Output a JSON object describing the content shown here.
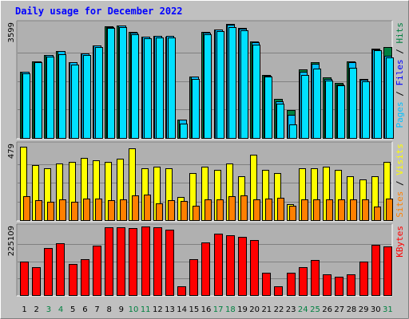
{
  "chart_data": {
    "type": "bar",
    "title": "Daily usage for December 2022",
    "x": [
      "1",
      "2",
      "3",
      "4",
      "5",
      "6",
      "7",
      "8",
      "9",
      "10",
      "11",
      "12",
      "13",
      "14",
      "15",
      "16",
      "17",
      "18",
      "19",
      "20",
      "21",
      "22",
      "23",
      "24",
      "25",
      "26",
      "27",
      "28",
      "29",
      "30",
      "31"
    ],
    "weekend_days": [
      "3",
      "4",
      "10",
      "11",
      "17",
      "18",
      "24",
      "25",
      "31"
    ],
    "colors": {
      "background": "#c0c0c0",
      "plot": "#b0b0b0",
      "title": "#0000ff",
      "weekday_tick": "#000000",
      "weekend_tick": "#008040",
      "hits": "#008040",
      "files": "#00c0ff",
      "pages": "#00e0ff",
      "visits": "#ff8000",
      "sites": "#ffff00",
      "kbytes": "#ff0000"
    },
    "panels": [
      {
        "name": "hits-files-pages",
        "ymax": 3599,
        "ymax_label": "3599",
        "label_parts": [
          {
            "text": "Pages",
            "color": "#00c0ff"
          },
          {
            "text": " / ",
            "color": "#000000"
          },
          {
            "text": "Files",
            "color": "#0000ff"
          },
          {
            "text": " / ",
            "color": "#000000"
          },
          {
            "text": "Hits",
            "color": "#008040"
          }
        ],
        "series": [
          {
            "key": "hits",
            "color": "#008040",
            "values": [
              2090,
              2410,
              2620,
              2750,
              2380,
              2680,
              2920,
              3520,
              3540,
              3340,
              3200,
              3220,
              3200,
              590,
              1950,
              3340,
              3420,
              3600,
              3470,
              3040,
              1990,
              1230,
              890,
              2160,
              2400,
              1910,
              1740,
              2420,
              1860,
              2830,
              2880
            ]
          },
          {
            "key": "files",
            "color": "#00c0ff",
            "values": [
              2090,
              2420,
              2630,
              2740,
              2390,
              2680,
              2920,
              3500,
              3540,
              3330,
              3200,
              3220,
              3210,
              590,
              1940,
              3330,
              3420,
              3570,
              3460,
              3020,
              1970,
              1160,
              720,
              2100,
              2350,
              1870,
              1690,
              2380,
              1830,
              2800,
              2590
            ]
          },
          {
            "key": "pages",
            "color": "#00e0ff",
            "values": [
              2040,
              2390,
              2560,
              2650,
              2310,
              2610,
              2870,
              3480,
              3490,
              3280,
              3140,
              3180,
              3160,
              460,
              1870,
              3280,
              3370,
              3510,
              3390,
              2950,
              1930,
              1070,
              430,
              2000,
              2200,
              1820,
              1650,
              2210,
              1780,
              2780,
              2540
            ]
          }
        ]
      },
      {
        "name": "visits-sites",
        "ymax": 479,
        "ymax_label": "479",
        "label_parts": [
          {
            "text": "Sites",
            "color": "#ff8000"
          },
          {
            "text": " / ",
            "color": "#000000"
          },
          {
            "text": "Visits",
            "color": "#ffff00"
          }
        ],
        "series": [
          {
            "key": "sites",
            "color": "#ffff00",
            "values": [
              470,
              350,
              330,
              360,
              370,
              400,
              380,
              370,
              390,
              460,
              330,
              340,
              330,
              150,
              300,
              340,
              320,
              360,
              280,
              420,
              320,
              300,
              100,
              330,
              330,
              340,
              320,
              280,
              260,
              280,
              370
            ]
          },
          {
            "key": "visits",
            "color": "#ff8000",
            "values": [
              155,
              125,
              115,
              135,
              115,
              140,
              140,
              125,
              135,
              160,
              165,
              105,
              125,
              120,
              90,
              130,
              135,
              155,
              160,
              130,
              140,
              145,
              90,
              130,
              135,
              135,
              130,
              135,
              130,
              85,
              140
            ]
          }
        ]
      },
      {
        "name": "kbytes",
        "ymax": 225109,
        "ymax_label": "225109",
        "label_parts": [
          {
            "text": "KBytes",
            "color": "#ff0000"
          }
        ],
        "series": [
          {
            "key": "kbytes",
            "color": "#ff0000",
            "values": [
              112000,
              92000,
              156000,
              172000,
              102000,
              118000,
              164000,
              224000,
              224000,
              222000,
              228000,
              224000,
              216000,
              30000,
              118000,
              176000,
              204000,
              198000,
              194000,
              182000,
              74000,
              30000,
              74000,
              92000,
              116000,
              68000,
              62000,
              68000,
              110000,
              166000,
              162000
            ]
          }
        ]
      }
    ]
  }
}
